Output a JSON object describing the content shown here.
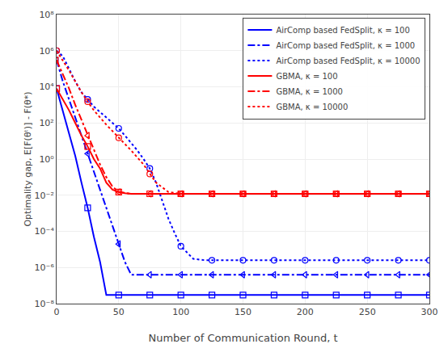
{
  "chart_data": {
    "type": "line",
    "xlabel": "Number of Communication Round, t",
    "ylabel": "Optimality gap, E[F(θᵗ)] - F(θ*)",
    "log": "y",
    "grid": true,
    "legend": "upper right",
    "xlim": [
      0,
      300
    ],
    "ylim": [
      1e-08,
      100000000.0
    ],
    "xticks": [
      0,
      50,
      100,
      150,
      200,
      250,
      300
    ],
    "yticks": [
      {
        "value": 1e-08,
        "label": "10⁻⁸"
      },
      {
        "value": 1e-06,
        "label": "10⁻⁶"
      },
      {
        "value": 0.0001,
        "label": "10⁻⁴"
      },
      {
        "value": 0.01,
        "label": "10⁻²"
      },
      {
        "value": 1,
        "label": "10⁰"
      },
      {
        "value": 100.0,
        "label": "10²"
      },
      {
        "value": 10000.0,
        "label": "10⁴"
      },
      {
        "value": 1000000.0,
        "label": "10⁶"
      },
      {
        "value": 100000000.0,
        "label": "10⁸"
      }
    ],
    "series": [
      {
        "name": "AirComp based FedSplit, κ = 100",
        "color": "#0000ff",
        "line_style": "solid",
        "marker": "square-open",
        "x": [
          0,
          5,
          10,
          15,
          20,
          25,
          30,
          35,
          40,
          45,
          50,
          55,
          60,
          65,
          70,
          75,
          80,
          85,
          90,
          95,
          100,
          110,
          120,
          130,
          140,
          150,
          175,
          200,
          225,
          250,
          275,
          300
        ],
        "values": [
          8000,
          500,
          30,
          1.5,
          0.05,
          0.002,
          5e-05,
          2e-06,
          3e-08,
          3e-08,
          3e-08,
          3e-08,
          3e-08,
          3e-08,
          3e-08,
          3e-08,
          3e-08,
          3e-08,
          3e-08,
          3e-08,
          3e-08,
          3e-08,
          3e-08,
          3e-08,
          3e-08,
          3e-08,
          3e-08,
          3e-08,
          3e-08,
          3e-08,
          3e-08,
          3e-08
        ],
        "marker_x": [
          0,
          25,
          50,
          75,
          100,
          125,
          150,
          175,
          200,
          225,
          250,
          275,
          300
        ],
        "marker_values": [
          8000,
          0.002,
          3e-08,
          3e-08,
          3e-08,
          3e-08,
          3e-08,
          3e-08,
          3e-08,
          3e-08,
          3e-08,
          3e-08,
          3e-08
        ]
      },
      {
        "name": "AirComp based FedSplit, κ = 1000",
        "color": "#0000ff",
        "line_style": "dashdot",
        "marker": "triangle-left-open",
        "x": [
          0,
          5,
          10,
          15,
          20,
          25,
          30,
          35,
          40,
          45,
          50,
          55,
          60,
          65,
          70,
          75,
          80,
          85,
          90,
          95,
          100,
          110,
          125,
          150,
          175,
          200,
          225,
          250,
          275,
          300
        ],
        "values": [
          300000.0,
          20000.0,
          2000.0,
          200,
          20,
          2,
          0.2,
          0.02,
          0.002,
          0.0002,
          2e-05,
          2e-06,
          4e-07,
          4e-07,
          4e-07,
          4e-07,
          4e-07,
          4e-07,
          4e-07,
          4e-07,
          4e-07,
          4e-07,
          4e-07,
          4e-07,
          4e-07,
          4e-07,
          4e-07,
          4e-07,
          4e-07,
          4e-07
        ],
        "marker_x": [
          0,
          25,
          50,
          75,
          100,
          125,
          150,
          175,
          200,
          225,
          250,
          275,
          300
        ],
        "marker_values": [
          300000.0,
          2,
          2e-05,
          4e-07,
          4e-07,
          4e-07,
          4e-07,
          4e-07,
          4e-07,
          4e-07,
          4e-07,
          4e-07,
          4e-07
        ]
      },
      {
        "name": "AirComp based FedSplit, κ = 10000",
        "color": "#0000ff",
        "line_style": "dot",
        "marker": "circle-open",
        "x": [
          0,
          5,
          10,
          15,
          20,
          25,
          30,
          35,
          40,
          45,
          50,
          55,
          60,
          65,
          70,
          75,
          80,
          85,
          90,
          95,
          100,
          110,
          120,
          125,
          130,
          140,
          150,
          160,
          175,
          200,
          225,
          250,
          275,
          300
        ],
        "values": [
          1000000.0,
          500000.0,
          100000.0,
          20000.0,
          5000.0,
          2000.0,
          800,
          400,
          200,
          100,
          50,
          20,
          8,
          3,
          1,
          0.3,
          0.05,
          0.005,
          0.0005,
          8e-05,
          1.5e-05,
          3e-06,
          2.5e-06,
          2.5e-06,
          2.5e-06,
          2.5e-06,
          2.5e-06,
          2.5e-06,
          2.5e-06,
          2.5e-06,
          2.5e-06,
          2.5e-06,
          2.5e-06,
          2.5e-06
        ],
        "marker_x": [
          0,
          25,
          50,
          75,
          100,
          125,
          150,
          175,
          200,
          225,
          250,
          275,
          300
        ],
        "marker_values": [
          1000000.0,
          2000.0,
          50,
          0.3,
          1.5e-05,
          2.5e-06,
          2.5e-06,
          2.5e-06,
          2.5e-06,
          2.5e-06,
          2.5e-06,
          2.5e-06,
          2.5e-06
        ]
      },
      {
        "name": "GBMA, κ = 100",
        "color": "#ff0000",
        "line_style": "solid",
        "marker": "square-open",
        "x": [
          0,
          5,
          10,
          15,
          20,
          25,
          30,
          35,
          40,
          45,
          50,
          55,
          60,
          65,
          70,
          75,
          100,
          125,
          150,
          175,
          200,
          225,
          250,
          275,
          300
        ],
        "values": [
          8000,
          2000,
          500,
          100,
          20,
          5,
          1,
          0.3,
          0.05,
          0.02,
          0.015,
          0.013,
          0.012,
          0.012,
          0.012,
          0.012,
          0.012,
          0.012,
          0.012,
          0.012,
          0.012,
          0.012,
          0.012,
          0.012,
          0.012
        ],
        "marker_x": [
          0,
          25,
          50,
          75,
          100,
          125,
          150,
          175,
          200,
          225,
          250,
          275,
          300
        ],
        "marker_values": [
          8000,
          5,
          0.015,
          0.012,
          0.012,
          0.012,
          0.012,
          0.012,
          0.012,
          0.012,
          0.012,
          0.012,
          0.012
        ]
      },
      {
        "name": "GBMA, κ = 1000",
        "color": "#ff0000",
        "line_style": "dashdot",
        "marker": "triangle-left-open",
        "x": [
          0,
          5,
          10,
          15,
          20,
          25,
          30,
          35,
          40,
          45,
          50,
          55,
          60,
          65,
          70,
          75,
          80,
          90,
          100,
          125,
          150,
          175,
          200,
          225,
          250,
          275,
          300
        ],
        "values": [
          300000.0,
          50000.0,
          8000.0,
          1000.0,
          150,
          20,
          3,
          0.5,
          0.1,
          0.03,
          0.015,
          0.013,
          0.012,
          0.012,
          0.012,
          0.012,
          0.012,
          0.012,
          0.012,
          0.012,
          0.012,
          0.012,
          0.012,
          0.012,
          0.012,
          0.012,
          0.012
        ],
        "marker_x": [
          0,
          25,
          50,
          75,
          100,
          125,
          150,
          175,
          200,
          225,
          250,
          275,
          300
        ],
        "marker_values": [
          300000.0,
          20,
          0.015,
          0.012,
          0.012,
          0.012,
          0.012,
          0.012,
          0.012,
          0.012,
          0.012,
          0.012,
          0.012
        ]
      },
      {
        "name": "GBMA, κ = 10000",
        "color": "#ff0000",
        "line_style": "dot",
        "marker": "circle-open",
        "x": [
          0,
          5,
          10,
          15,
          20,
          25,
          30,
          40,
          50,
          60,
          70,
          75,
          80,
          90,
          100,
          110,
          120,
          125,
          130,
          140,
          150,
          175,
          200,
          225,
          250,
          275,
          300
        ],
        "values": [
          1000000.0,
          300000.0,
          80000.0,
          20000.0,
          5000.0,
          1500,
          500,
          80,
          15,
          3,
          0.5,
          0.15,
          0.05,
          0.015,
          0.012,
          0.012,
          0.012,
          0.012,
          0.012,
          0.012,
          0.012,
          0.012,
          0.012,
          0.012,
          0.012,
          0.012,
          0.012
        ],
        "marker_x": [
          0,
          25,
          50,
          75,
          100,
          125,
          150,
          175,
          200,
          225,
          250,
          275,
          300
        ],
        "marker_values": [
          1000000.0,
          1500,
          15,
          0.15,
          0.012,
          0.012,
          0.012,
          0.012,
          0.012,
          0.012,
          0.012,
          0.012,
          0.012
        ]
      }
    ]
  }
}
